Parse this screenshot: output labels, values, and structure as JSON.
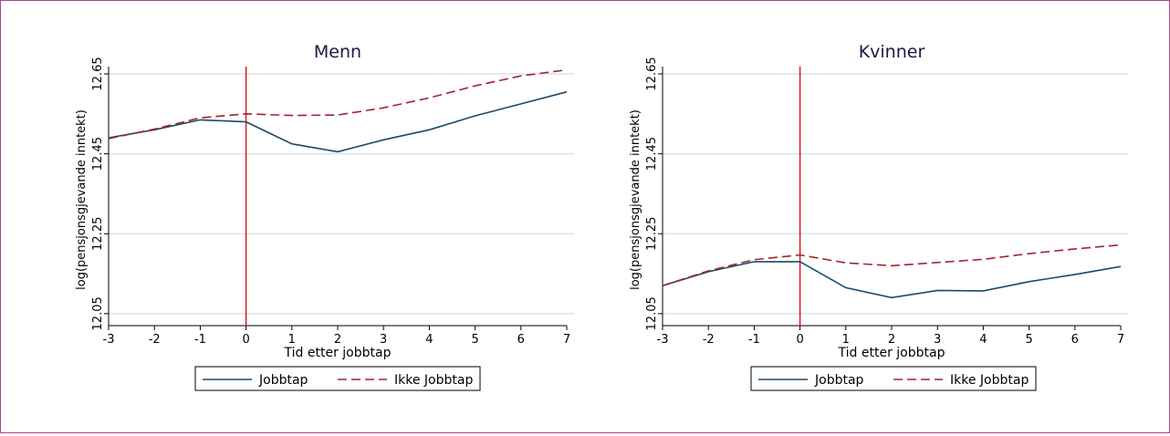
{
  "colors": {
    "frame": "#b0438f",
    "jobbtap": "#1a4a6b",
    "ikke_jobbtap": "#a3242b",
    "event_line": "#e0161d",
    "grid": "#d8e4e8",
    "text": "#1a1a40"
  },
  "chart_data": [
    {
      "type": "line",
      "title": "Menn",
      "xlabel": "Tid etter jobbtap",
      "ylabel": "log(pensjonsgjevande inntekt)",
      "x": [
        -3,
        -2,
        -1,
        0,
        1,
        2,
        3,
        4,
        5,
        6,
        7
      ],
      "xticks": [
        "-3",
        "-2",
        "-1",
        "0",
        "1",
        "2",
        "3",
        "4",
        "5",
        "6",
        "7"
      ],
      "yticks": [
        "12.05",
        "12.25",
        "12.45",
        "12.65"
      ],
      "xlim": [
        -3,
        7
      ],
      "ylim": [
        12.02,
        12.65
      ],
      "event_x": 0,
      "grid": "horizontal",
      "legend_position": "bottom",
      "series": [
        {
          "name": "Jobbtap",
          "style": "solid",
          "values": [
            12.49,
            12.51,
            12.535,
            12.53,
            12.475,
            12.455,
            12.485,
            12.51,
            12.545,
            12.575,
            12.605
          ]
        },
        {
          "name": "Ikke Jobbtap",
          "style": "dashed",
          "values": [
            12.488,
            12.512,
            12.54,
            12.55,
            12.546,
            12.547,
            12.565,
            12.59,
            12.62,
            12.645,
            12.66
          ]
        }
      ]
    },
    {
      "type": "line",
      "title": "Kvinner",
      "xlabel": "Tid etter jobbtap",
      "ylabel": "log(pensjonsgjevande inntekt)",
      "x": [
        -3,
        -2,
        -1,
        0,
        1,
        2,
        3,
        4,
        5,
        6,
        7
      ],
      "xticks": [
        "-3",
        "-2",
        "-1",
        "0",
        "1",
        "2",
        "3",
        "4",
        "5",
        "6",
        "7"
      ],
      "yticks": [
        "12.05",
        "12.25",
        "12.45",
        "12.65"
      ],
      "xlim": [
        -3,
        7
      ],
      "ylim": [
        12.02,
        12.65
      ],
      "event_x": 0,
      "grid": "horizontal",
      "legend_position": "bottom",
      "series": [
        {
          "name": "Jobbtap",
          "style": "solid",
          "values": [
            12.12,
            12.155,
            12.18,
            12.18,
            12.115,
            12.09,
            12.108,
            12.107,
            12.13,
            12.148,
            12.168
          ]
        },
        {
          "name": "Ikke Jobbtap",
          "style": "dashed",
          "values": [
            12.12,
            12.157,
            12.185,
            12.197,
            12.177,
            12.17,
            12.178,
            12.186,
            12.2,
            12.212,
            12.222
          ]
        }
      ]
    }
  ],
  "legend": {
    "items": [
      "Jobbtap",
      "Ikke Jobbtap"
    ]
  }
}
